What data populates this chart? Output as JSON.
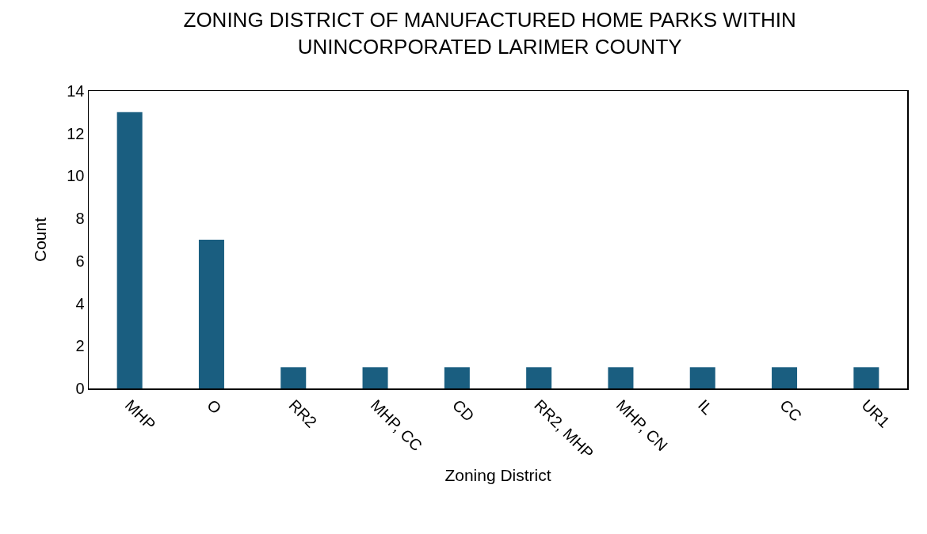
{
  "chart_data": {
    "type": "bar",
    "title": "ZONING DISTRICT OF MANUFACTURED HOME PARKS WITHIN\nUNINCORPORATED LARIMER COUNTY",
    "xlabel": "Zoning District",
    "ylabel": "Count",
    "categories": [
      "MHP",
      "O",
      "RR2",
      "MHP, CC",
      "CD",
      "RR2, MHP",
      "MHP, CN",
      "IL",
      "CC",
      "UR1"
    ],
    "values": [
      13,
      7,
      1,
      1,
      1,
      1,
      1,
      1,
      1,
      1
    ],
    "color": "#1a5e80",
    "ylim": [
      0,
      14
    ],
    "yticks": [
      0,
      2,
      4,
      6,
      8,
      10,
      12,
      14
    ]
  }
}
